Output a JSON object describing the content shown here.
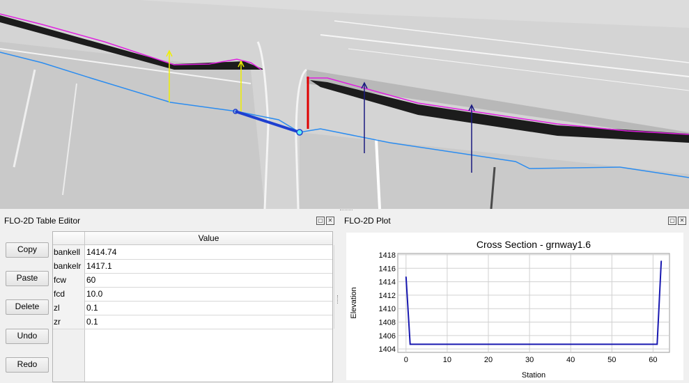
{
  "table_editor": {
    "title": "FLO-2D Table Editor",
    "buttons": {
      "copy": "Copy",
      "paste": "Paste",
      "delete": "Delete",
      "undo": "Undo",
      "redo": "Redo"
    },
    "column_header": "Value",
    "rows": [
      {
        "name": "bankell",
        "value": "1414.74"
      },
      {
        "name": "bankelr",
        "value": "1417.1"
      },
      {
        "name": "fcw",
        "value": "60"
      },
      {
        "name": "fcd",
        "value": "10.0"
      },
      {
        "name": "zl",
        "value": "0.1"
      },
      {
        "name": "zr",
        "value": "0.1"
      }
    ]
  },
  "plot_panel": {
    "title": "FLO-2D Plot"
  },
  "dock_icons": [
    "float-icon",
    "close-icon"
  ],
  "colors": {
    "series": "#1818b0",
    "cross_section_line": "#1e3fd0",
    "channel_line": "#2a8cf0",
    "bank_line": "#e020e0",
    "left_bank_marker": "#e00000"
  },
  "chart_data": {
    "type": "line",
    "title": "Cross Section - grnway1.6",
    "xlabel": "Station",
    "ylabel": "Elevation",
    "xlim": [
      -2,
      64
    ],
    "ylim": [
      1403.5,
      1418.2
    ],
    "xticks": [
      0,
      10,
      20,
      30,
      40,
      50,
      60
    ],
    "yticks": [
      1404,
      1406,
      1408,
      1410,
      1412,
      1414,
      1416,
      1418
    ],
    "grid": true,
    "series": [
      {
        "x": [
          0,
          1,
          61,
          62
        ],
        "y": [
          1414.74,
          1404.7,
          1404.7,
          1417.1
        ]
      }
    ]
  }
}
